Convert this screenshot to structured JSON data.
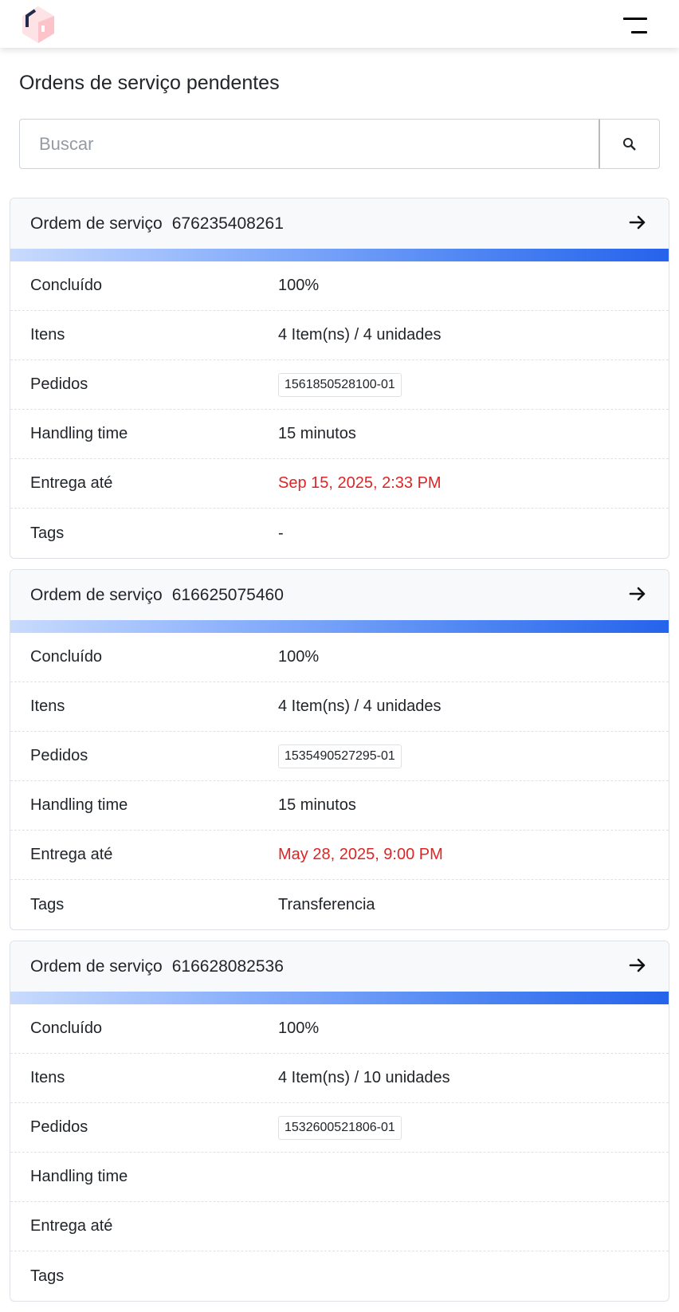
{
  "header": {
    "logo_icon": "box-logo-icon",
    "menu_icon": "hamburger-menu-icon"
  },
  "page_title": "Ordens de serviço pendentes",
  "search": {
    "placeholder": "Buscar",
    "value": "",
    "icon": "search-icon"
  },
  "labels": {
    "order_prefix": "Ordem de serviço",
    "concluido": "Concluído",
    "itens": "Itens",
    "pedidos": "Pedidos",
    "handling": "Handling time",
    "entrega": "Entrega até",
    "tags": "Tags"
  },
  "colors": {
    "accent": "#2563eb",
    "overdue": "#dc2626"
  },
  "orders": [
    {
      "number": "676235408261",
      "progress_percent": 100,
      "concluido": "100%",
      "itens": "4 Item(ns) / 4 unidades",
      "pedido": "1561850528100-01",
      "handling": "15 minutos",
      "entrega": "Sep 15, 2025, 2:33 PM",
      "tags": "-"
    },
    {
      "number": "616625075460",
      "progress_percent": 100,
      "concluido": "100%",
      "itens": "4 Item(ns) / 4 unidades",
      "pedido": "1535490527295-01",
      "handling": "15 minutos",
      "entrega": "May 28, 2025, 9:00 PM",
      "tags": "Transferencia"
    },
    {
      "number": "616628082536",
      "progress_percent": 100,
      "concluido": "100%",
      "itens": "4 Item(ns) / 10 unidades",
      "pedido": "1532600521806-01",
      "handling": "",
      "entrega": "",
      "tags": ""
    }
  ]
}
